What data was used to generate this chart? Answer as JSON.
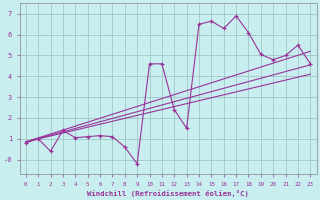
{
  "xlabel": "Windchill (Refroidissement éolien,°C)",
  "background_color": "#c8eef0",
  "line_color": "#993399",
  "grid_color": "#aacccc",
  "xlim": [
    -0.5,
    23.5
  ],
  "ylim": [
    -0.7,
    7.5
  ],
  "xticks": [
    0,
    1,
    2,
    3,
    4,
    5,
    6,
    7,
    8,
    9,
    10,
    11,
    12,
    13,
    14,
    15,
    16,
    17,
    18,
    19,
    20,
    21,
    22,
    23
  ],
  "yticks": [
    0,
    1,
    2,
    3,
    4,
    5,
    6,
    7
  ],
  "ytick_labels": [
    "-0",
    "1",
    "2",
    "3",
    "4",
    "5",
    "6",
    "7"
  ],
  "main_x": [
    0,
    1,
    2,
    3,
    4,
    5,
    6,
    7,
    8,
    9,
    10,
    11,
    12,
    13,
    14,
    15,
    16,
    17,
    18,
    19,
    20,
    21,
    22,
    23
  ],
  "main_y": [
    0.8,
    1.0,
    0.4,
    1.4,
    1.05,
    1.1,
    1.15,
    1.1,
    0.6,
    -0.2,
    4.6,
    4.6,
    2.4,
    1.5,
    6.5,
    6.65,
    6.3,
    6.9,
    6.1,
    5.05,
    4.8,
    5.0,
    5.5,
    4.6
  ],
  "trend_lines": [
    {
      "x0": 0,
      "y0": 0.85,
      "x1": 23,
      "y1": 5.2
    },
    {
      "x0": 0,
      "y0": 0.85,
      "x1": 23,
      "y1": 4.55
    },
    {
      "x0": 0,
      "y0": 0.85,
      "x1": 23,
      "y1": 4.1
    }
  ]
}
